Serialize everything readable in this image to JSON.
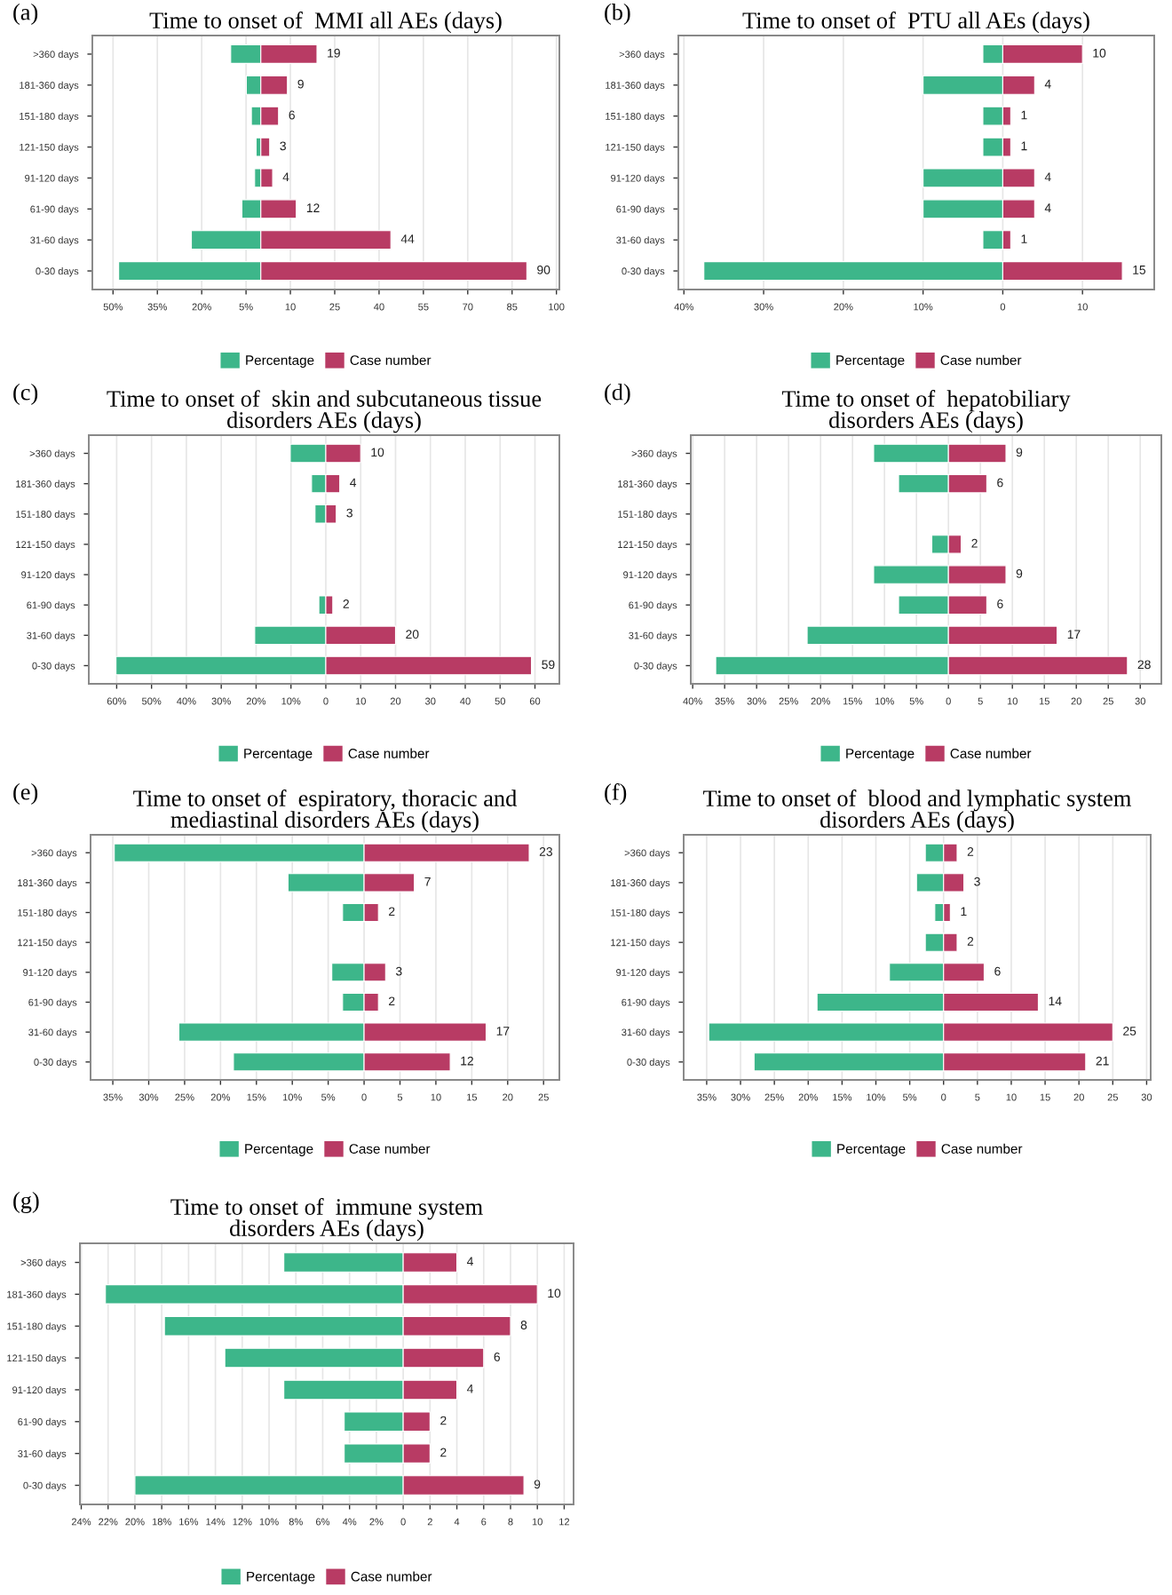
{
  "chart_data": [
    {
      "type": "bar",
      "orientation": "horizontal",
      "title": "Time to onset of  MMI all AEs (days)",
      "annotations": [
        "(a)"
      ],
      "categories": [
        ">360 days",
        "181-360 days",
        "151-180 days",
        "121-150 days",
        "91-120 days",
        "61-90 days",
        "31-60 days",
        "0-30 days"
      ],
      "series": [
        {
          "name": "Percentage",
          "color": "#3db68a",
          "values": [
            -10.2,
            -4.9,
            -3.2,
            -1.6,
            -2.1,
            -6.4,
            -23.5,
            -48.1
          ]
        },
        {
          "name": "Case number",
          "color": "#b83b64",
          "values": [
            19,
            9,
            6,
            3,
            4,
            12,
            44,
            90
          ],
          "value_labels": [
            "19",
            "9",
            "6",
            "3",
            "4",
            "12",
            "44",
            "90"
          ]
        }
      ],
      "xlim": [
        -57,
        101
      ],
      "xticks": [
        {
          "value": -50,
          "label": "50%"
        },
        {
          "value": -35,
          "label": "35%"
        },
        {
          "value": -20,
          "label": "20%"
        },
        {
          "value": -5,
          "label": "5%"
        },
        10,
        25,
        40,
        55,
        70,
        85,
        100
      ],
      "grid": "x",
      "legend": "bottom",
      "stacked": true
    },
    {
      "type": "bar",
      "orientation": "horizontal",
      "title": "Time to onset of  PTU all AEs (days)",
      "annotations": [
        "(b)"
      ],
      "categories": [
        ">360 days",
        "181-360 days",
        "151-180 days",
        "121-150 days",
        "91-120 days",
        "61-90 days",
        "31-60 days",
        "0-30 days"
      ],
      "series": [
        {
          "name": "Percentage",
          "color": "#3db68a",
          "values": [
            -2.5,
            -10,
            -2.5,
            -2.5,
            -10,
            -10,
            -2.5,
            -37.5
          ]
        },
        {
          "name": "Case number",
          "color": "#b83b64",
          "values": [
            10,
            4,
            1,
            1,
            4,
            4,
            1,
            15
          ],
          "value_labels": [
            "10",
            "4",
            "1",
            "1",
            "4",
            "4",
            "1",
            "15"
          ]
        }
      ],
      "xlim": [
        -40.7,
        19
      ],
      "xticks": [
        {
          "value": -40,
          "label": "40%"
        },
        {
          "value": -30,
          "label": "30%"
        },
        {
          "value": -20,
          "label": "20%"
        },
        {
          "value": -10,
          "label": "10%"
        },
        0,
        10
      ],
      "grid": "x",
      "legend": "bottom",
      "stacked": true
    },
    {
      "type": "bar",
      "orientation": "horizontal",
      "title": "Time to onset of  skin and subcutaneous tissue\ndisorders AEs (days)",
      "annotations": [
        "(c)"
      ],
      "categories": [
        ">360 days",
        "181-360 days",
        "151-180 days",
        "121-150 days",
        "91-120 days",
        "61-90 days",
        "31-60 days",
        "0-30 days"
      ],
      "series": [
        {
          "name": "Percentage",
          "color": "#3db68a",
          "values": [
            -10.2,
            -4.1,
            -3.1,
            null,
            null,
            -2.0,
            -20.4,
            -60.2
          ]
        },
        {
          "name": "Case number",
          "color": "#b83b64",
          "values": [
            10,
            4,
            3,
            null,
            null,
            2,
            20,
            59
          ],
          "value_labels": [
            "10",
            "4",
            "3",
            null,
            null,
            "2",
            "20",
            "59"
          ]
        }
      ],
      "xlim": [
        -68,
        67
      ],
      "xticks": [
        {
          "value": -60,
          "label": "60%"
        },
        {
          "value": -50,
          "label": "50%"
        },
        {
          "value": -40,
          "label": "40%"
        },
        {
          "value": -30,
          "label": "30%"
        },
        {
          "value": -20,
          "label": "20%"
        },
        {
          "value": -10,
          "label": "10%"
        },
        0,
        10,
        20,
        30,
        40,
        50,
        60
      ],
      "grid": "x",
      "legend": "bottom",
      "stacked": true
    },
    {
      "type": "bar",
      "orientation": "horizontal",
      "title": "Time to onset of  hepatobiliary\ndisorders AEs (days)",
      "annotations": [
        "(d)"
      ],
      "categories": [
        ">360 days",
        "181-360 days",
        "151-180 days",
        "121-150 days",
        "91-120 days",
        "61-90 days",
        "31-60 days",
        "0-30 days"
      ],
      "series": [
        {
          "name": "Percentage",
          "color": "#3db68a",
          "values": [
            -11.7,
            -7.8,
            null,
            -2.6,
            -11.7,
            -7.8,
            -22.1,
            -36.4
          ]
        },
        {
          "name": "Case number",
          "color": "#b83b64",
          "values": [
            9,
            6,
            null,
            2,
            9,
            6,
            17,
            28
          ],
          "value_labels": [
            "9",
            "6",
            null,
            "2",
            "9",
            "6",
            "17",
            "28"
          ]
        }
      ],
      "xlim": [
        -40.3,
        33.3
      ],
      "xticks": [
        {
          "value": -40,
          "label": "40%"
        },
        {
          "value": -35,
          "label": "35%"
        },
        {
          "value": -30,
          "label": "30%"
        },
        {
          "value": -25,
          "label": "25%"
        },
        {
          "value": -20,
          "label": "20%"
        },
        {
          "value": -15,
          "label": "15%"
        },
        {
          "value": -10,
          "label": "10%"
        },
        {
          "value": -5,
          "label": "5%"
        },
        0,
        5,
        10,
        15,
        20,
        25,
        30
      ],
      "grid": "x",
      "legend": "bottom",
      "stacked": true
    },
    {
      "type": "bar",
      "orientation": "horizontal",
      "title": "Time to onset of  espiratory, thoracic and\nmediastinal disorders AEs (days)",
      "annotations": [
        "(e)"
      ],
      "categories": [
        ">360 days",
        "181-360 days",
        "151-180 days",
        "121-150 days",
        "91-120 days",
        "61-90 days",
        "31-60 days",
        "0-30 days"
      ],
      "series": [
        {
          "name": "Percentage",
          "color": "#3db68a",
          "values": [
            -34.8,
            -10.6,
            -3.0,
            null,
            -4.5,
            -3.0,
            -25.8,
            -18.2
          ]
        },
        {
          "name": "Case number",
          "color": "#b83b64",
          "values": [
            23,
            7,
            2,
            null,
            3,
            2,
            17,
            12
          ],
          "value_labels": [
            "23",
            "7",
            "2",
            null,
            "3",
            "2",
            "17",
            "12"
          ]
        }
      ],
      "xlim": [
        -38.1,
        27.2
      ],
      "xticks": [
        {
          "value": -35,
          "label": "35%"
        },
        {
          "value": -30,
          "label": "30%"
        },
        {
          "value": -25,
          "label": "25%"
        },
        {
          "value": -20,
          "label": "20%"
        },
        {
          "value": -15,
          "label": "15%"
        },
        {
          "value": -10,
          "label": "10%"
        },
        {
          "value": -5,
          "label": "5%"
        },
        0,
        5,
        10,
        15,
        20,
        25
      ],
      "grid": "x",
      "legend": "bottom",
      "stacked": true
    },
    {
      "type": "bar",
      "orientation": "horizontal",
      "title": "Time to onset of  blood and lymphatic system\ndisorders AEs (days)",
      "annotations": [
        "(f)"
      ],
      "categories": [
        ">360 days",
        "181-360 days",
        "151-180 days",
        "121-150 days",
        "91-120 days",
        "61-90 days",
        "31-60 days",
        "0-30 days"
      ],
      "series": [
        {
          "name": "Percentage",
          "color": "#3db68a",
          "values": [
            -2.7,
            -4.0,
            -1.3,
            -2.7,
            -8.0,
            -18.7,
            -34.7,
            -28.0
          ]
        },
        {
          "name": "Case number",
          "color": "#b83b64",
          "values": [
            2,
            3,
            1,
            2,
            6,
            14,
            25,
            21
          ],
          "value_labels": [
            "2",
            "3",
            "1",
            "2",
            "6",
            "14",
            "25",
            "21"
          ]
        }
      ],
      "xlim": [
        -38.4,
        30.6
      ],
      "xticks": [
        {
          "value": -35,
          "label": "35%"
        },
        {
          "value": -30,
          "label": "30%"
        },
        {
          "value": -25,
          "label": "25%"
        },
        {
          "value": -20,
          "label": "20%"
        },
        {
          "value": -15,
          "label": "15%"
        },
        {
          "value": -10,
          "label": "10%"
        },
        {
          "value": -5,
          "label": "5%"
        },
        0,
        5,
        10,
        15,
        20,
        25,
        30
      ],
      "grid": "x",
      "legend": "bottom",
      "stacked": true
    },
    {
      "type": "bar",
      "orientation": "horizontal",
      "title": "Time to onset of  immune system\ndisorders AEs (days)",
      "annotations": [
        "(g)"
      ],
      "categories": [
        ">360 days",
        "181-360 days",
        "151-180 days",
        "121-150 days",
        "91-120 days",
        "61-90 days",
        "31-60 days",
        "0-30 days"
      ],
      "series": [
        {
          "name": "Percentage",
          "color": "#3db68a",
          "values": [
            -8.9,
            -22.2,
            -17.8,
            -13.3,
            -8.9,
            -4.4,
            -4.4,
            -20.0
          ]
        },
        {
          "name": "Case number",
          "color": "#b83b64",
          "values": [
            4,
            10,
            8,
            6,
            4,
            2,
            2,
            9
          ],
          "value_labels": [
            "4",
            "10",
            "8",
            "6",
            "4",
            "2",
            "2",
            "9"
          ]
        }
      ],
      "xlim": [
        -24.1,
        12.7
      ],
      "xticks": [
        {
          "value": -24,
          "label": "24%"
        },
        {
          "value": -22,
          "label": "22%"
        },
        {
          "value": -20,
          "label": "20%"
        },
        {
          "value": -18,
          "label": "18%"
        },
        {
          "value": -16,
          "label": "16%"
        },
        {
          "value": -14,
          "label": "14%"
        },
        {
          "value": -12,
          "label": "12%"
        },
        {
          "value": -10,
          "label": "10%"
        },
        {
          "value": -8,
          "label": "8%"
        },
        {
          "value": -6,
          "label": "6%"
        },
        {
          "value": -4,
          "label": "4%"
        },
        {
          "value": -2,
          "label": "2%"
        },
        0,
        2,
        4,
        6,
        8,
        10,
        12
      ],
      "grid": "x",
      "legend": "bottom",
      "stacked": true
    }
  ]
}
